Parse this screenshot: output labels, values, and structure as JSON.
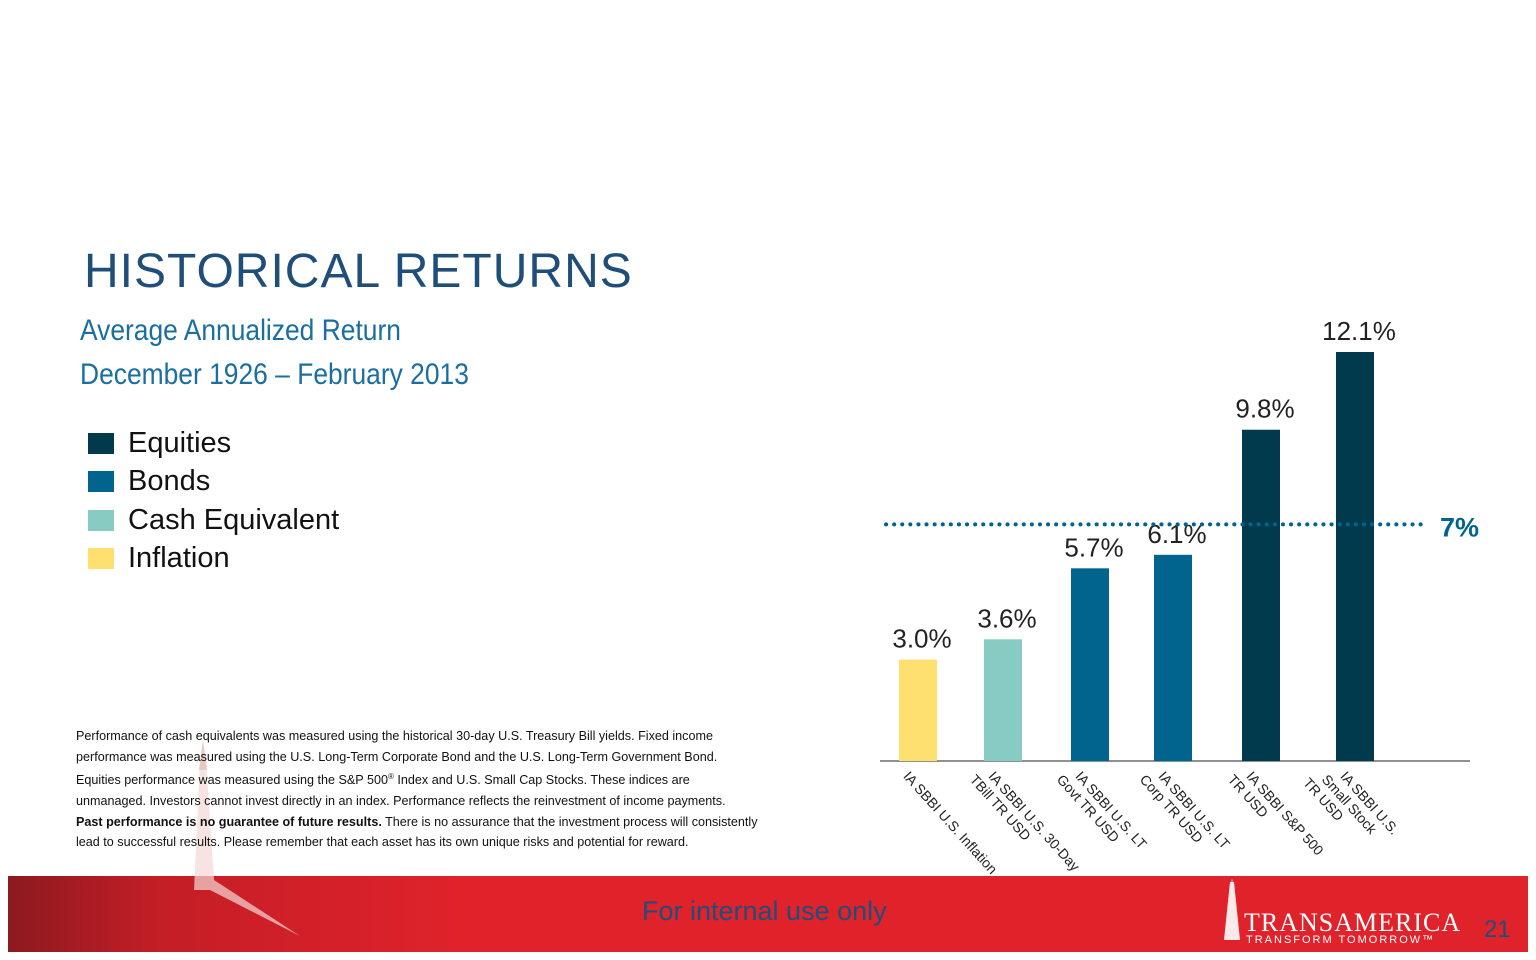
{
  "slide": {
    "title": "HISTORICAL RETURNS",
    "subtitle_line1": "Average Annualized Return",
    "subtitle_line2": "December 1926 – February 2013",
    "page_number": "21"
  },
  "legend": [
    {
      "label": "Equities",
      "color": "#003a4c"
    },
    {
      "label": "Bonds",
      "color": "#00648f"
    },
    {
      "label": "Cash Equivalent",
      "color": "#88cbc3"
    },
    {
      "label": "Inflation",
      "color": "#fde06f"
    }
  ],
  "footnote": {
    "para1_before_sup": "Performance of cash equivalents was measured using the historical 30-day U.S. Treasury Bill yields. Fixed income performance was measured using the U.S. Long-Term Corporate Bond and the U.S. Long-Term Government Bond. Equities performance was measured using the S&P 500",
    "para1_sup": "®",
    "para1_after_sup": " Index and U.S. Small Cap Stocks.  These indices are unmanaged. Investors cannot invest directly in an index. Performance reflects the reinvestment of income payments.",
    "para2_bold": "Past performance is no guarantee of future results.",
    "para2_rest": " There is no assurance that the investment process will consistently lead to successful results. Please remember that each asset has its own unique risks and potential for reward."
  },
  "footer": {
    "internal_text": "For internal use only",
    "brand_name": "TRANSAMERICA",
    "brand_tagline": "TRANSFORM TOMORROW™"
  },
  "chart_data": {
    "type": "bar",
    "categories": [
      "IA SBBI U.S. Inflation",
      "IA SBBI U.S. 30-Day TBill TR USD",
      "IA SBBI U.S. LT Govt TR USD",
      "IA SBBI U.S. LT Corp TR USD",
      "IA SBBI S&P 500 TR USD",
      "IA SBBI U.S. Small Stock TR USD"
    ],
    "category_lines": [
      [
        "IA SBBI U.S. Inflation"
      ],
      [
        "IA SBBI U.S. 30-Day",
        "TBill TR USD"
      ],
      [
        "IA SBBI U.S. LT",
        "Govt TR USD"
      ],
      [
        "IA SBBI U.S. LT",
        "Corp TR USD"
      ],
      [
        "IA SBBI S&P 500",
        "TR USD"
      ],
      [
        "IA SBBI U.S.",
        "Small Stock",
        "TR USD"
      ]
    ],
    "values": [
      3.0,
      3.6,
      5.7,
      6.1,
      9.8,
      12.1
    ],
    "value_labels": [
      "3.0%",
      "3.6%",
      "5.7%",
      "6.1%",
      "9.8%",
      "12.1%"
    ],
    "bar_colors": [
      "#fde06f",
      "#88cbc3",
      "#00648f",
      "#00648f",
      "#003a4c",
      "#003a4c"
    ],
    "reference_line": {
      "value": 7,
      "label": "7%",
      "color": "#00648f",
      "style": "dotted"
    },
    "ylim": [
      0,
      12.1
    ],
    "grid": false,
    "legend_position": "left"
  }
}
